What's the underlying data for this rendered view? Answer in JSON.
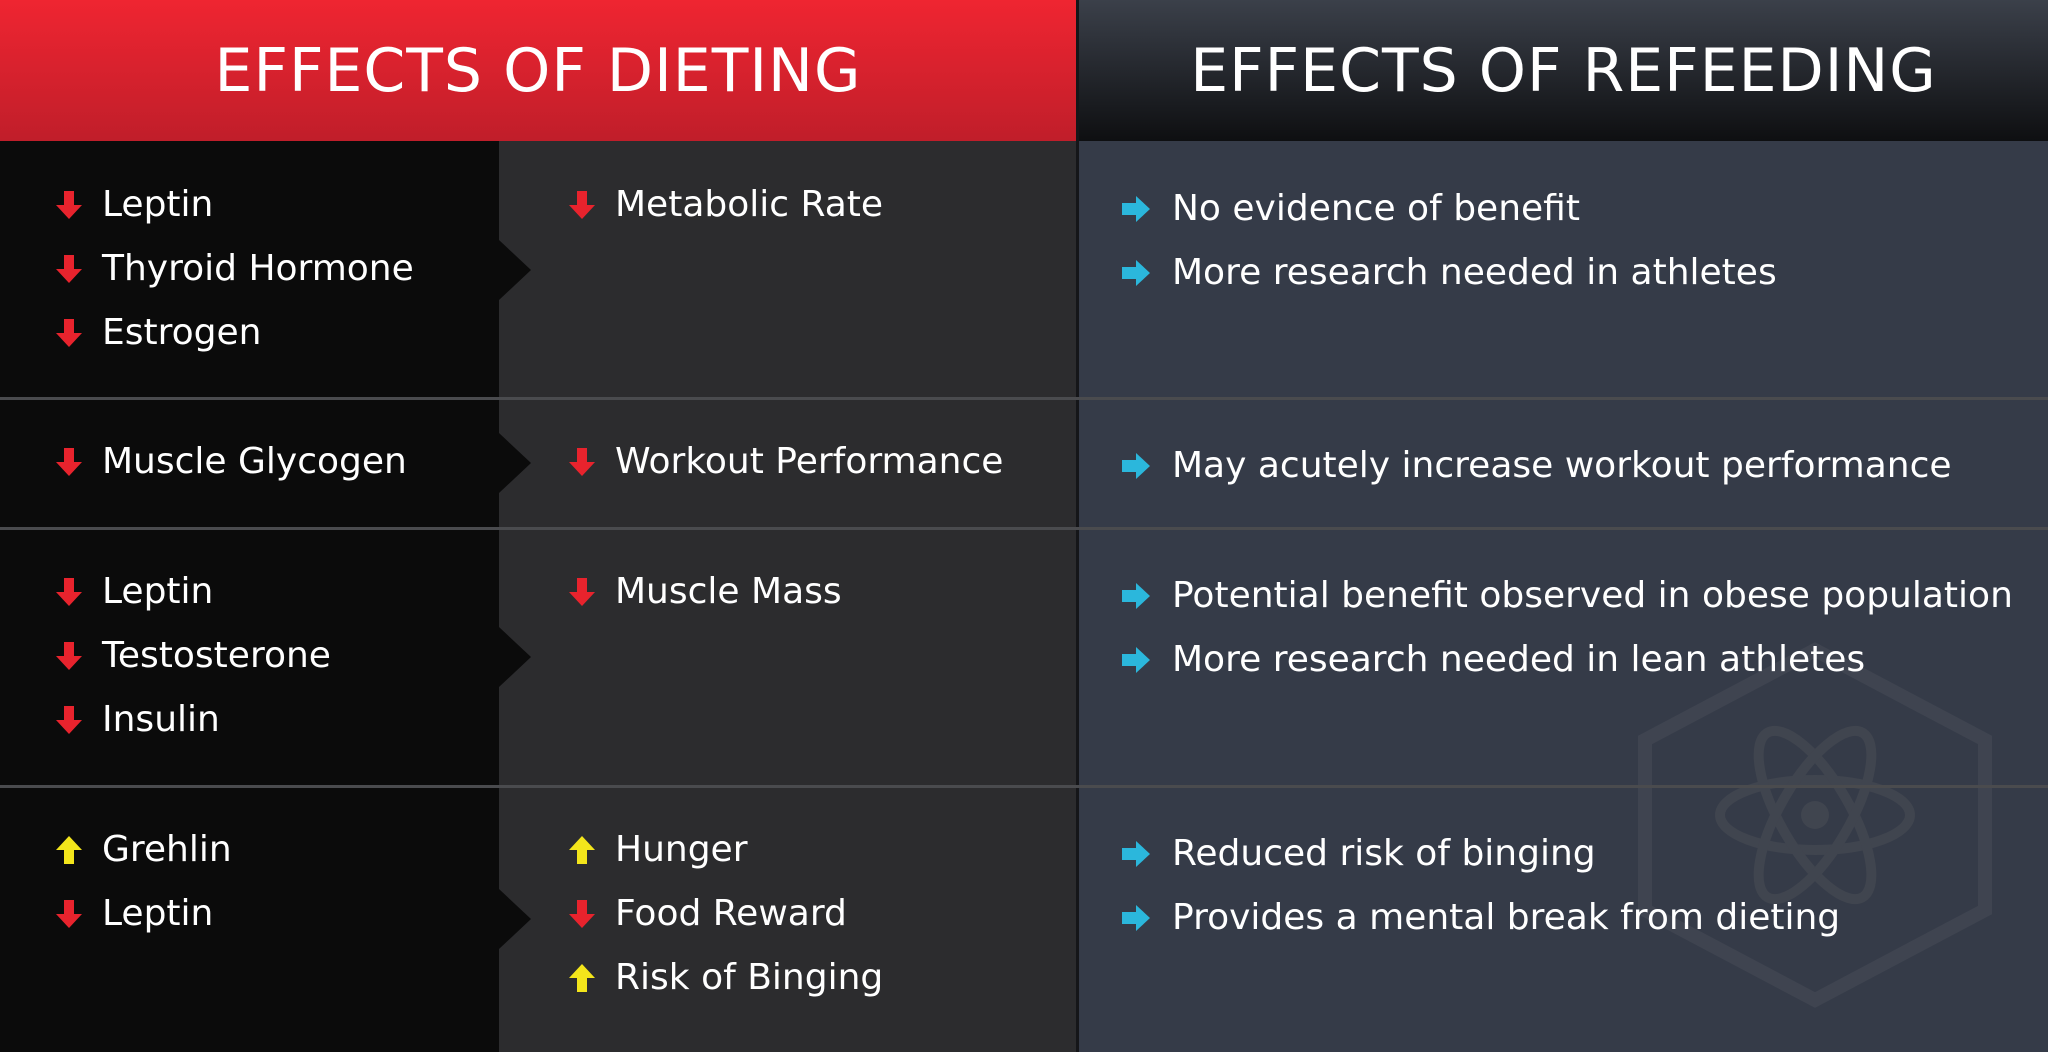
{
  "header": {
    "dieting": "EFFECTS OF DIETING",
    "refeeding": "EFFECTS OF REFEEDING"
  },
  "rows": [
    {
      "causes": [
        {
          "trend": "down",
          "text": "Leptin"
        },
        {
          "trend": "down",
          "text": "Thyroid Hormone"
        },
        {
          "trend": "down",
          "text": "Estrogen"
        }
      ],
      "effects": [
        {
          "trend": "down",
          "text": "Metabolic Rate"
        }
      ],
      "refeeding": [
        "No evidence of benefit",
        "More research needed in athletes"
      ]
    },
    {
      "causes": [
        {
          "trend": "down",
          "text": "Muscle Glycogen"
        }
      ],
      "effects": [
        {
          "trend": "down",
          "text": "Workout Performance"
        }
      ],
      "refeeding": [
        "May acutely increase workout performance"
      ]
    },
    {
      "causes": [
        {
          "trend": "down",
          "text": "Leptin"
        },
        {
          "trend": "down",
          "text": "Testosterone"
        },
        {
          "trend": "down",
          "text": "Insulin"
        }
      ],
      "effects": [
        {
          "trend": "down",
          "text": "Muscle Mass"
        }
      ],
      "refeeding": [
        "Potential benefit observed in obese population",
        "More research needed in lean athletes"
      ]
    },
    {
      "causes": [
        {
          "trend": "up",
          "text": "Grehlin"
        },
        {
          "trend": "down",
          "text": "Leptin"
        }
      ],
      "effects": [
        {
          "trend": "up",
          "text": "Hunger"
        },
        {
          "trend": "down",
          "text": "Food Reward"
        },
        {
          "trend": "up",
          "text": "Risk of Binging"
        }
      ],
      "refeeding": [
        "Reduced risk of binging",
        "Provides a mental break from dieting"
      ]
    }
  ]
}
